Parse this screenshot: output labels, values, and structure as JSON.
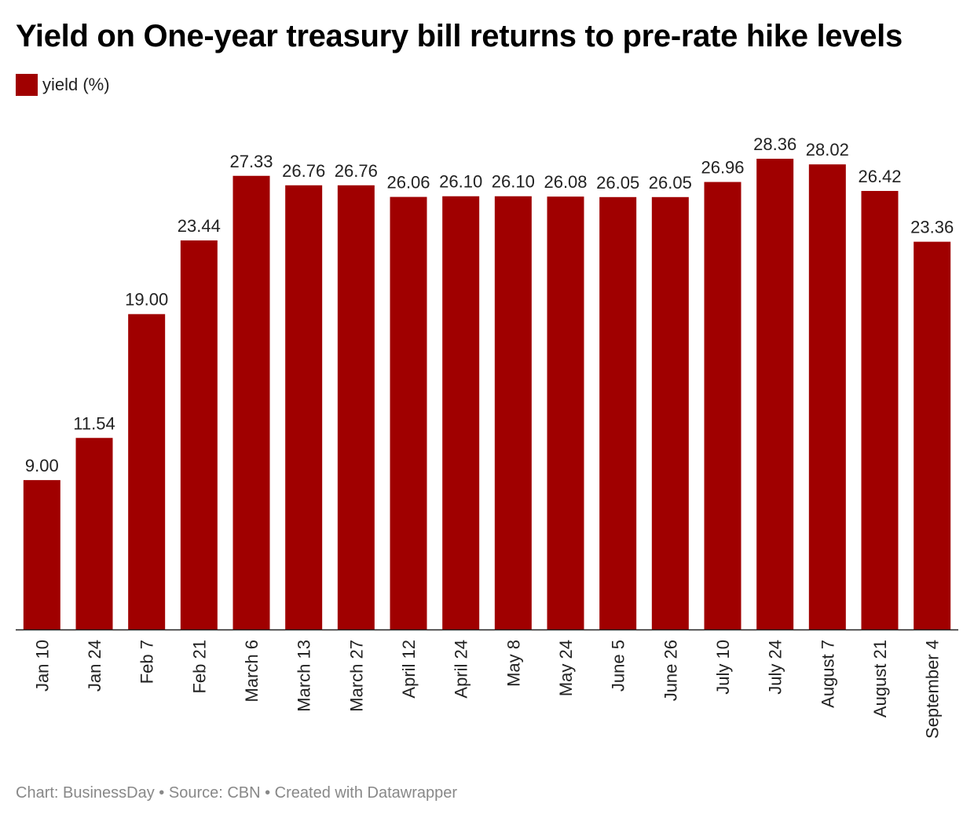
{
  "title": "Yield on One-year treasury bill returns to pre-rate hike levels",
  "legend": {
    "label": "yield (%)",
    "color": "#a00000"
  },
  "footer": {
    "text": "Chart: BusinessDay • Source: CBN • Created with Datawrapper"
  },
  "chart_data": {
    "type": "bar",
    "title": "Yield on One-year treasury bill returns to pre-rate hike levels",
    "xlabel": "",
    "ylabel": "",
    "ylim": [
      0,
      28.36
    ],
    "grid": false,
    "legend_position": "top-left",
    "bar_color": "#a00000",
    "categories": [
      "Jan 10",
      "Jan 24",
      "Feb 7",
      "Feb 21",
      "March 6",
      "March 13",
      "March 27",
      "April 12",
      "April 24",
      "May 8",
      "May 24",
      "June 5",
      "June 26",
      "July 10",
      "July 24",
      "August 7",
      "August 21",
      "September 4"
    ],
    "series": [
      {
        "name": "yield (%)",
        "values": [
          9.0,
          11.54,
          19.0,
          23.44,
          27.33,
          26.76,
          26.76,
          26.06,
          26.1,
          26.1,
          26.08,
          26.05,
          26.05,
          26.96,
          28.36,
          28.02,
          26.42,
          23.36
        ],
        "labels": [
          "9.00",
          "11.54",
          "19.00",
          "23.44",
          "27.33",
          "26.76",
          "26.76",
          "26.06",
          "26.10",
          "26.10",
          "26.08",
          "26.05",
          "26.05",
          "26.96",
          "28.36",
          "28.02",
          "26.42",
          "23.36"
        ]
      }
    ]
  }
}
